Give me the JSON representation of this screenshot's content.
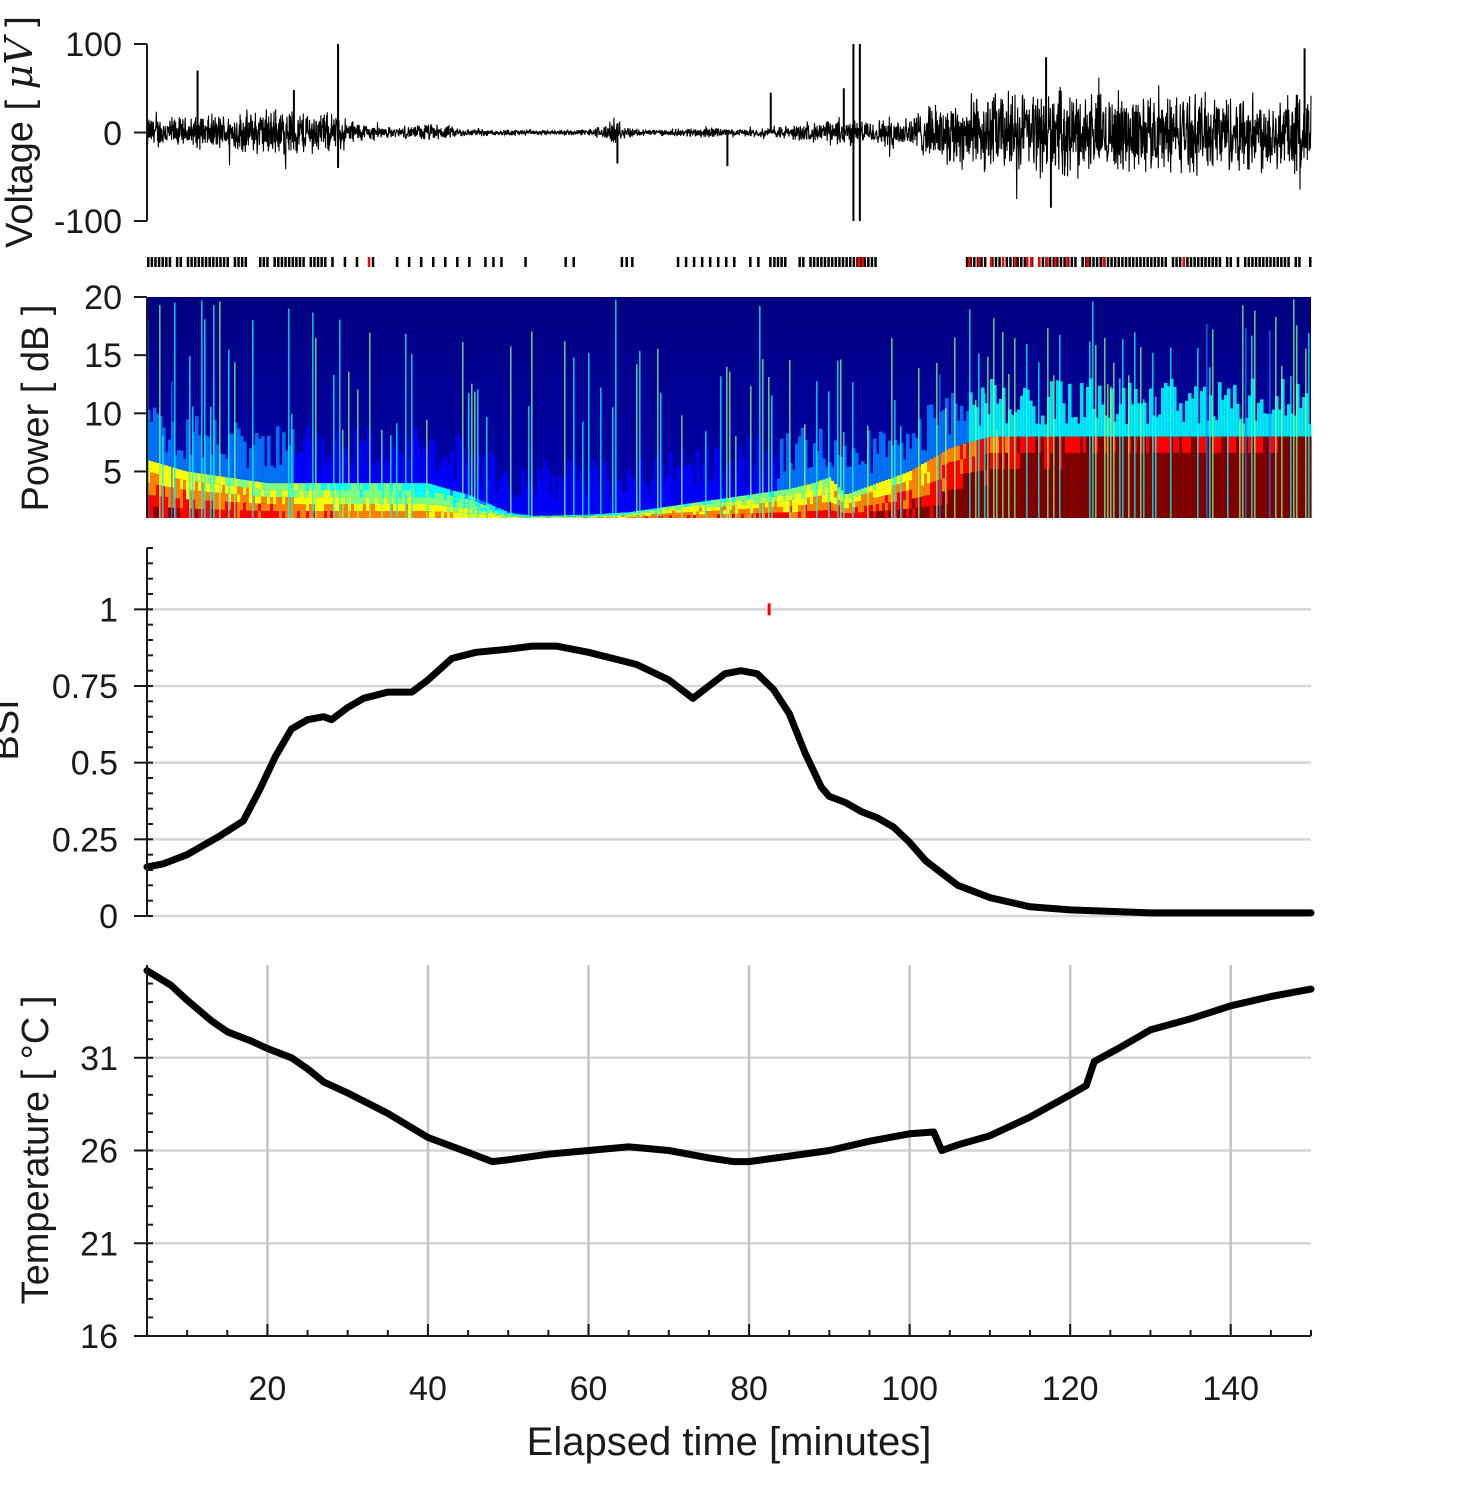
{
  "chart_data": [
    {
      "panel": "eeg",
      "type": "line",
      "ylabel_prefix": "Voltage [ ",
      "ylabel_unit": "μV",
      "ylabel_suffix": " ]",
      "ylim": [
        -100,
        100
      ],
      "yticks": [
        "100",
        "0",
        "-100"
      ],
      "ytick_values": [
        100,
        0,
        -100
      ],
      "xlim": [
        5,
        150
      ],
      "color": "#000000",
      "envelope": {
        "x": [
          5,
          10,
          15,
          20,
          25,
          28,
          32,
          36,
          40,
          45,
          50,
          55,
          60,
          63,
          66,
          70,
          75,
          78,
          82,
          85,
          88,
          91,
          95,
          100,
          103,
          106,
          110,
          115,
          120,
          125,
          130,
          135,
          140,
          145,
          150
        ],
        "amplitude": [
          22,
          20,
          25,
          32,
          30,
          25,
          12,
          6,
          12,
          5,
          4,
          3,
          4,
          14,
          5,
          4,
          8,
          4,
          6,
          10,
          12,
          18,
          15,
          25,
          35,
          45,
          52,
          55,
          55,
          52,
          52,
          50,
          52,
          52,
          55
        ]
      },
      "spikes": [
        {
          "x": 11.3,
          "y": 70
        },
        {
          "x": 23.3,
          "y": 48
        },
        {
          "x": 28.8,
          "y": 100
        },
        {
          "x": 28.8,
          "y": -40
        },
        {
          "x": 63.6,
          "y": -35
        },
        {
          "x": 77.3,
          "y": -38
        },
        {
          "x": 82.7,
          "y": 45
        },
        {
          "x": 93.0,
          "y": 100
        },
        {
          "x": 93.0,
          "y": -100
        },
        {
          "x": 93.8,
          "y": 100
        },
        {
          "x": 93.8,
          "y": -100
        },
        {
          "x": 91.8,
          "y": 50
        },
        {
          "x": 117.0,
          "y": 85
        },
        {
          "x": 117.6,
          "y": -85
        },
        {
          "x": 149.2,
          "y": 95
        }
      ]
    },
    {
      "panel": "burst-markers",
      "type": "scatter",
      "marker_color": "#000000",
      "highlight_color": "#ff0000",
      "markers_dense_ranges": [
        [
          5,
          28
        ],
        [
          83,
          96
        ],
        [
          107,
          150
        ]
      ],
      "markers_sparse_x": [
        29.5,
        31,
        33,
        36,
        37.5,
        39,
        40.5,
        42,
        43.5,
        45,
        47,
        48,
        49,
        52,
        57,
        58,
        64,
        64.6,
        65.3,
        71,
        72,
        73,
        74,
        75,
        76,
        77,
        78,
        80,
        81,
        82.5
      ],
      "highlights_x": [
        32.5,
        93.5,
        94,
        107.3,
        108.5,
        110,
        111.5,
        113,
        114.5,
        115,
        116,
        117,
        118,
        119.5,
        122,
        124,
        134
      ]
    },
    {
      "panel": "spectrogram",
      "type": "heatmap",
      "ylabel": "Power [ dB ]",
      "ylim": [
        1,
        20
      ],
      "yticks": [
        "20",
        "15",
        "10",
        "5"
      ],
      "ytick_values": [
        20,
        15,
        10,
        5
      ],
      "xlim": [
        5,
        150
      ],
      "colormap": "jet",
      "colors": [
        "#00007f",
        "#0000ff",
        "#007fff",
        "#00ffff",
        "#7fff7f",
        "#ffff00",
        "#ff7f00",
        "#ff0000",
        "#7f0000"
      ],
      "energy_band_top": {
        "x": [
          5,
          10,
          20,
          30,
          40,
          45,
          50,
          53,
          60,
          65,
          70,
          75,
          80,
          85,
          88,
          90,
          92,
          96,
          100,
          105,
          110,
          120,
          130,
          140,
          150
        ],
        "freq": [
          6,
          5,
          4,
          4,
          4,
          3,
          1.5,
          1.2,
          1.3,
          1.5,
          2,
          2.5,
          3,
          3.5,
          4,
          4.5,
          3,
          4,
          5,
          7,
          8,
          8,
          8,
          8,
          8
        ]
      },
      "base_level": {
        "x": [
          5,
          10,
          20,
          30,
          40,
          50,
          60,
          70,
          80,
          90,
          100,
          105,
          110,
          120,
          130,
          140,
          150
        ],
        "level": [
          0.55,
          0.5,
          0.45,
          0.35,
          0.3,
          0.2,
          0.25,
          0.4,
          0.4,
          0.45,
          0.55,
          0.65,
          0.75,
          0.85,
          0.85,
          0.85,
          0.9
        ]
      }
    },
    {
      "panel": "bsi",
      "type": "line",
      "ylabel": "BSI",
      "ylim": [
        0,
        1.2
      ],
      "yticks": [
        "1",
        "0.75",
        "0.5",
        "0.25",
        "0"
      ],
      "ytick_values": [
        1,
        0.75,
        0.5,
        0.25,
        0
      ],
      "xlim": [
        5,
        150
      ],
      "x": [
        5,
        7,
        10,
        14,
        17,
        19,
        21,
        23,
        25,
        27,
        28,
        30,
        32,
        35,
        38,
        40,
        43,
        46,
        50,
        53,
        56,
        60,
        63,
        66,
        70,
        73,
        75,
        77,
        79,
        81,
        83,
        85,
        87,
        89,
        90,
        92,
        94,
        96,
        98,
        100,
        102,
        104,
        106,
        110,
        115,
        120,
        130,
        140,
        150
      ],
      "y": [
        0.16,
        0.17,
        0.2,
        0.26,
        0.31,
        0.41,
        0.52,
        0.61,
        0.64,
        0.65,
        0.64,
        0.68,
        0.71,
        0.73,
        0.73,
        0.77,
        0.84,
        0.86,
        0.87,
        0.88,
        0.88,
        0.86,
        0.84,
        0.82,
        0.77,
        0.71,
        0.75,
        0.79,
        0.8,
        0.79,
        0.74,
        0.66,
        0.53,
        0.42,
        0.39,
        0.37,
        0.34,
        0.32,
        0.29,
        0.24,
        0.18,
        0.14,
        0.1,
        0.06,
        0.03,
        0.02,
        0.01,
        0.01,
        0.01
      ],
      "red_marker": {
        "x": 82.5,
        "y": 1.0
      },
      "color": "#000000"
    },
    {
      "panel": "temperature",
      "type": "line",
      "ylabel": "Temperature [ °C ]",
      "xlabel": "Elapsed time [minutes]",
      "ylim": [
        16,
        36
      ],
      "yticks": [
        "31",
        "26",
        "21",
        "16"
      ],
      "ytick_values": [
        31,
        26,
        21,
        16
      ],
      "xlim": [
        5,
        150
      ],
      "xticks": [
        "20",
        "40",
        "60",
        "80",
        "100",
        "120",
        "140"
      ],
      "xtick_values": [
        20,
        40,
        60,
        80,
        100,
        120,
        140
      ],
      "x": [
        5,
        8,
        10,
        13,
        15,
        18,
        20,
        23,
        25,
        27,
        30,
        35,
        40,
        45,
        48,
        50,
        55,
        60,
        65,
        70,
        75,
        78,
        80,
        85,
        90,
        95,
        100,
        103,
        104,
        106,
        110,
        115,
        120,
        122,
        123,
        126,
        130,
        135,
        140,
        145,
        150
      ],
      "y": [
        35.7,
        34.9,
        34.1,
        33.0,
        32.4,
        31.9,
        31.5,
        31.0,
        30.4,
        29.7,
        29.1,
        28.0,
        26.7,
        25.9,
        25.4,
        25.5,
        25.8,
        26.0,
        26.2,
        26.0,
        25.6,
        25.4,
        25.4,
        25.7,
        26.0,
        26.5,
        26.9,
        27.0,
        26.0,
        26.3,
        26.8,
        27.8,
        29.0,
        29.5,
        30.8,
        31.5,
        32.5,
        33.1,
        33.8,
        34.3,
        34.7
      ],
      "color": "#000000"
    }
  ]
}
